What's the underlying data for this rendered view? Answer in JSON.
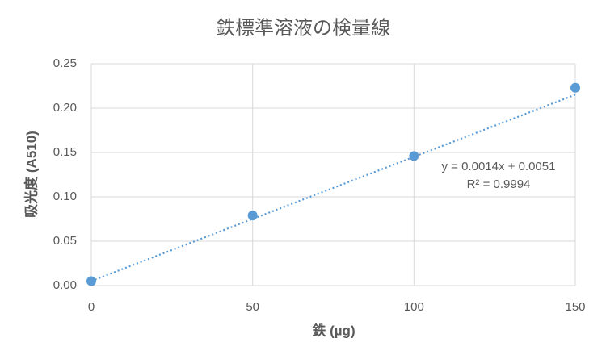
{
  "chart_data": {
    "type": "scatter",
    "title": "鉄標準溶液の検量線",
    "x_label": "鉄 (µg)",
    "y_label": "吸光度 (A510)",
    "series": [
      {
        "name": "吸光度",
        "color": "#5b9bd5",
        "x": [
          0,
          50,
          100,
          150
        ],
        "values": [
          0.005,
          0.079,
          0.146,
          0.223
        ]
      }
    ],
    "trendline": {
      "slope": 0.0014,
      "intercept": 0.0051,
      "equation": "y = 0.0014x + 0.0051",
      "r_squared": "R² = 0.9994",
      "color": "#5b9bd5"
    },
    "xlim": [
      0,
      150
    ],
    "xticks": [
      0,
      50,
      100,
      150
    ],
    "ylim": [
      0,
      0.25
    ],
    "yticks": [
      {
        "value": 0,
        "label": "0.00"
      },
      {
        "value": 0.05,
        "label": "0.05"
      },
      {
        "value": 0.1,
        "label": "0.10"
      },
      {
        "value": 0.15,
        "label": "0.15"
      },
      {
        "value": 0.2,
        "label": "0.20"
      },
      {
        "value": 0.25,
        "label": "0.25"
      }
    ],
    "grid": true
  }
}
